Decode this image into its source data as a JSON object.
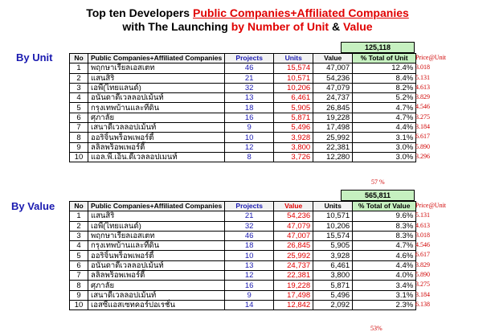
{
  "title": {
    "line1_prefix": "Top ten Developers ",
    "line1_highlight": "Public Companies+Affiliated Companies",
    "line2_prefix": "with The Launching ",
    "line2_highlight": "by Number of Unit",
    "line2_amp": " & ",
    "line2_value": "Value"
  },
  "by_unit": {
    "label": "By Unit",
    "total": "125,118",
    "headers": [
      "No",
      "Public Companies+Affiliated Companies",
      "Projects",
      "Units",
      "Value",
      "% Total of Unit"
    ],
    "price_header": "Price@Unit",
    "rows": [
      {
        "no": "1",
        "name": "พฤกษาเรียลเอสเตท",
        "projects": "46",
        "c1": "15,574",
        "c2": "47,007",
        "pct": "12.4%",
        "price": "3.018"
      },
      {
        "no": "2",
        "name": "แสนสิริ",
        "projects": "21",
        "c1": "10,571",
        "c2": "54,236",
        "pct": "8.4%",
        "price": "5.131"
      },
      {
        "no": "3",
        "name": "เอพี(ไทยแลนด์)",
        "projects": "32",
        "c1": "10,206",
        "c2": "47,079",
        "pct": "8.2%",
        "price": "4.613"
      },
      {
        "no": "4",
        "name": "อนันดาดีเวลลอปเม้นท์",
        "projects": "13",
        "c1": "6,461",
        "c2": "24,737",
        "pct": "5.2%",
        "price": "3.829"
      },
      {
        "no": "5",
        "name": "กรุงเทพบ้านและที่ดิน",
        "projects": "18",
        "c1": "5,905",
        "c2": "26,845",
        "pct": "4.7%",
        "price": "4.546"
      },
      {
        "no": "6",
        "name": "ศุภาลัย",
        "projects": "16",
        "c1": "5,871",
        "c2": "19,228",
        "pct": "4.7%",
        "price": "3.275"
      },
      {
        "no": "7",
        "name": "เสนาดีเวลลอปเม้นท์",
        "projects": "9",
        "c1": "5,496",
        "c2": "17,498",
        "pct": "4.4%",
        "price": "3.184"
      },
      {
        "no": "8",
        "name": "ออริจิ้นพร็อพเพอร์ตี้",
        "projects": "10",
        "c1": "3,928",
        "c2": "25,992",
        "pct": "3.1%",
        "price": "6.617"
      },
      {
        "no": "9",
        "name": "ลลิลพร็อพเพอร์ตี้",
        "projects": "12",
        "c1": "3,800",
        "c2": "22,381",
        "pct": "3.0%",
        "price": "5.890"
      },
      {
        "no": "10",
        "name": "แอล.พี.เอ็น.ดีเวลลอปเมนท์",
        "projects": "8",
        "c1": "3,726",
        "c2": "12,280",
        "pct": "3.0%",
        "price": "3.296"
      }
    ],
    "note": "57 %"
  },
  "by_value": {
    "label": "By Value",
    "total": "565,811",
    "headers": [
      "No",
      "Public Companies+Affiliated Companies",
      "Projects",
      "Value",
      "Units",
      "% Total of Value"
    ],
    "price_header": "Price@Unit",
    "rows": [
      {
        "no": "1",
        "name": "แสนสิริ",
        "projects": "21",
        "c1": "54,236",
        "c2": "10,571",
        "pct": "9.6%",
        "price": "5.131"
      },
      {
        "no": "2",
        "name": "เอพี(ไทยแลนด์)",
        "projects": "32",
        "c1": "47,079",
        "c2": "10,206",
        "pct": "8.3%",
        "price": "4.613"
      },
      {
        "no": "3",
        "name": "พฤกษาเรียลเอสเตท",
        "projects": "46",
        "c1": "47,007",
        "c2": "15,574",
        "pct": "8.3%",
        "price": "3.018"
      },
      {
        "no": "4",
        "name": "กรุงเทพบ้านและที่ดิน",
        "projects": "18",
        "c1": "26,845",
        "c2": "5,905",
        "pct": "4.7%",
        "price": "4.546"
      },
      {
        "no": "5",
        "name": "ออริจิ้นพร็อพเพอร์ตี้",
        "projects": "10",
        "c1": "25,992",
        "c2": "3,928",
        "pct": "4.6%",
        "price": "6.617"
      },
      {
        "no": "6",
        "name": "อนันดาดีเวลลอปเม้นท์",
        "projects": "13",
        "c1": "24,737",
        "c2": "6,461",
        "pct": "4.4%",
        "price": "3.829"
      },
      {
        "no": "7",
        "name": "ลลิลพร็อพเพอร์ตี้",
        "projects": "12",
        "c1": "22,381",
        "c2": "3,800",
        "pct": "4.0%",
        "price": "5.890"
      },
      {
        "no": "8",
        "name": "ศุภาลัย",
        "projects": "16",
        "c1": "19,228",
        "c2": "5,871",
        "pct": "3.4%",
        "price": "3.275"
      },
      {
        "no": "9",
        "name": "เสนาดีเวลลอปเม้นท์",
        "projects": "9",
        "c1": "17,498",
        "c2": "5,496",
        "pct": "3.1%",
        "price": "3.184"
      },
      {
        "no": "10",
        "name": "เอสซีแอสเซทคอร์ปอเรชั่น",
        "projects": "14",
        "c1": "12,842",
        "c2": "2,092",
        "pct": "2.3%",
        "price": "6.138"
      }
    ],
    "note": "53%"
  }
}
